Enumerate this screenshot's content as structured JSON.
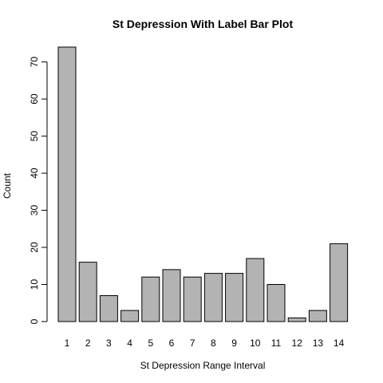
{
  "chart_data": {
    "type": "bar",
    "title": "St Depression With Label Bar Plot",
    "xlabel": "St Depression Range Interval",
    "ylabel": "Count",
    "categories": [
      "1",
      "2",
      "3",
      "4",
      "5",
      "6",
      "7",
      "8",
      "9",
      "10",
      "11",
      "12",
      "13",
      "14"
    ],
    "values": [
      74,
      16,
      7,
      3,
      12,
      14,
      12,
      13,
      13,
      17,
      10,
      1,
      3,
      21
    ],
    "yticks": [
      "0",
      "10",
      "20",
      "30",
      "40",
      "50",
      "60",
      "70"
    ],
    "ylim": [
      0,
      74
    ],
    "grid": false,
    "colors": {
      "bar_fill": "#b3b3b3",
      "bar_stroke": "#000000",
      "axis": "#000000",
      "background": "#ffffff"
    }
  }
}
